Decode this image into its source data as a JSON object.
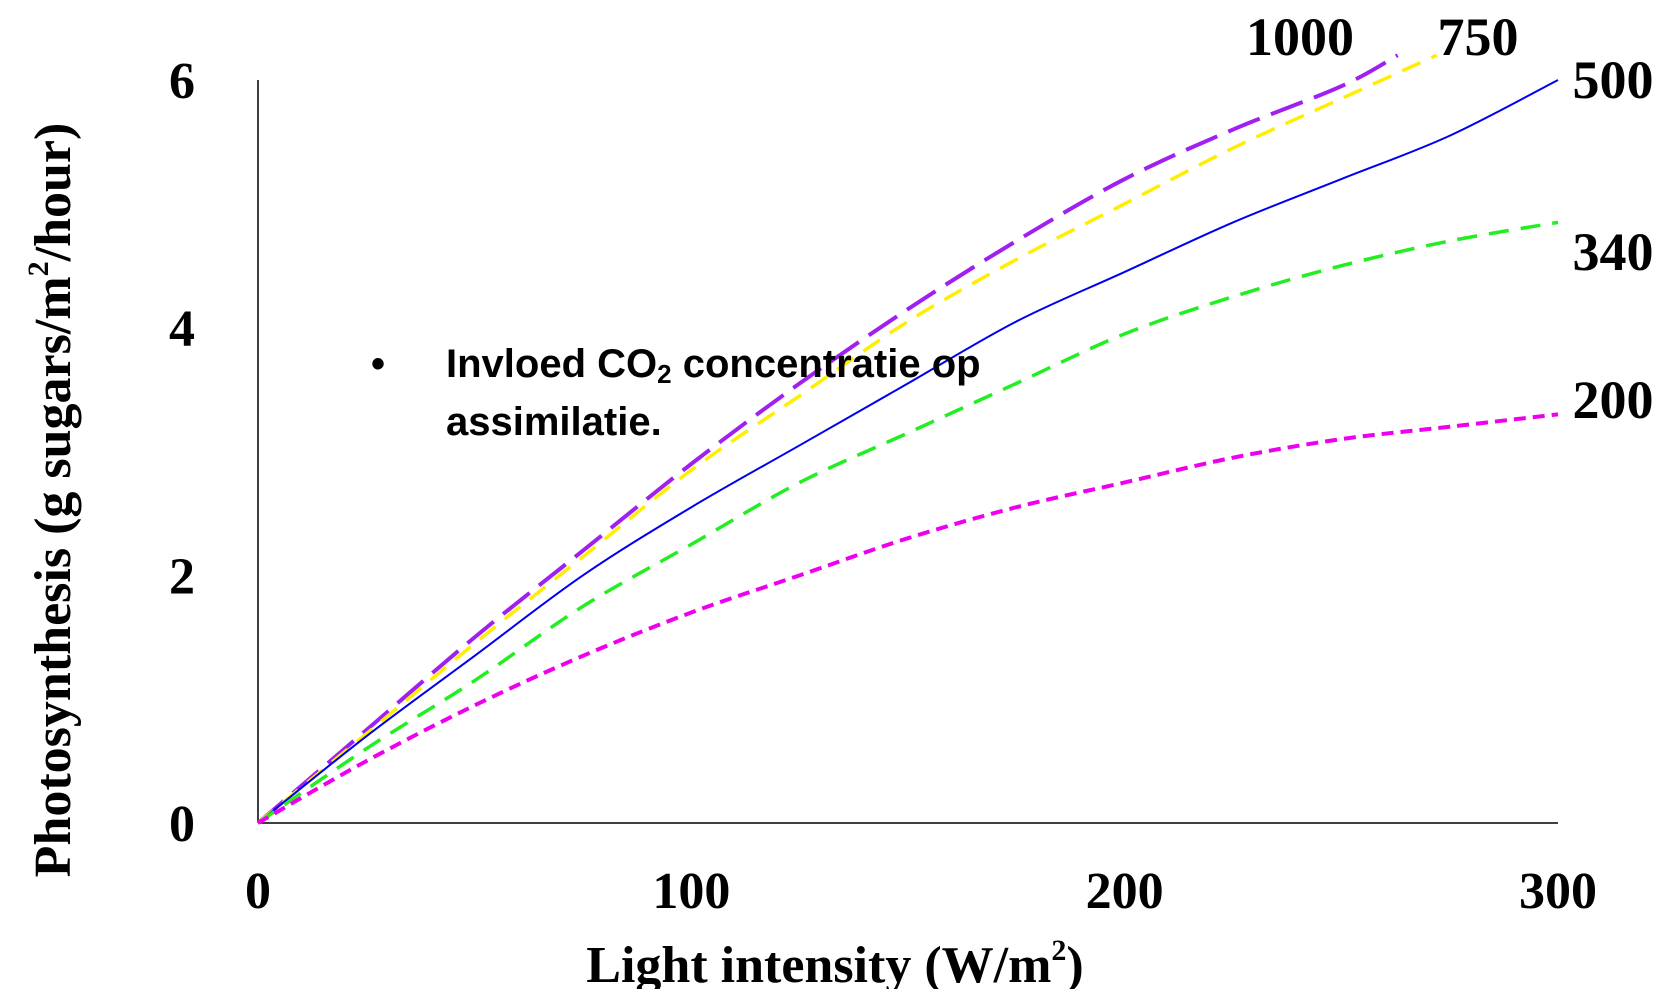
{
  "chart_data": {
    "type": "line",
    "xlabel": "Light intensity (W/m",
    "xlabel_sup": "2",
    "xlabel_tail": ")",
    "ylabel": "Photosynthesis (g sugars/m",
    "ylabel_sup": "2",
    "ylabel_tail": "/hour)",
    "xlim": [
      0,
      300
    ],
    "ylim": [
      0,
      6
    ],
    "x_ticks": [
      0,
      100,
      200,
      300
    ],
    "x_tick_labels": [
      "0",
      "100",
      "200",
      "300"
    ],
    "y_ticks": [
      0,
      2,
      4,
      6
    ],
    "y_tick_labels": [
      "0",
      "2",
      "4",
      "6"
    ],
    "grid": false,
    "legend": "inline labels at line ends",
    "series": [
      {
        "name": "1000",
        "color": "#a020f0",
        "dash": "long-dash",
        "x": [
          0,
          25,
          50,
          75,
          100,
          125,
          150,
          175,
          200,
          225,
          250,
          263
        ],
        "y": [
          0,
          0.75,
          1.5,
          2.2,
          2.9,
          3.55,
          4.15,
          4.7,
          5.2,
          5.6,
          5.95,
          6.2
        ]
      },
      {
        "name": "750",
        "color": "#ffee00",
        "dash": "dash",
        "x": [
          0,
          25,
          50,
          75,
          100,
          125,
          150,
          175,
          200,
          225,
          250,
          272
        ],
        "y": [
          0,
          0.72,
          1.45,
          2.15,
          2.85,
          3.45,
          4.05,
          4.55,
          5.0,
          5.45,
          5.85,
          6.2
        ]
      },
      {
        "name": "500",
        "color": "#0000ee",
        "dash": "solid",
        "x": [
          0,
          25,
          50,
          75,
          100,
          125,
          150,
          175,
          200,
          225,
          250,
          275,
          300
        ],
        "y": [
          0,
          0.7,
          1.35,
          2.0,
          2.55,
          3.05,
          3.55,
          4.05,
          4.45,
          4.85,
          5.2,
          5.55,
          6.0
        ]
      },
      {
        "name": "340",
        "color": "#22ee22",
        "dash": "dash",
        "x": [
          0,
          25,
          50,
          75,
          100,
          125,
          150,
          175,
          200,
          225,
          250,
          275,
          300
        ],
        "y": [
          0,
          0.6,
          1.15,
          1.75,
          2.25,
          2.75,
          3.15,
          3.55,
          3.95,
          4.25,
          4.5,
          4.7,
          4.85
        ]
      },
      {
        "name": "200",
        "color": "#ee00ee",
        "dash": "short-dash",
        "x": [
          0,
          25,
          50,
          75,
          100,
          125,
          150,
          175,
          200,
          225,
          250,
          275,
          300
        ],
        "y": [
          0,
          0.5,
          0.95,
          1.35,
          1.7,
          2.0,
          2.3,
          2.55,
          2.75,
          2.95,
          3.1,
          3.2,
          3.3
        ]
      }
    ],
    "annotation": {
      "bullet": "•",
      "text_before_sub": "Invloed CO",
      "sub": "2",
      "text_after_sub": " concentratie op assimilatie."
    }
  }
}
